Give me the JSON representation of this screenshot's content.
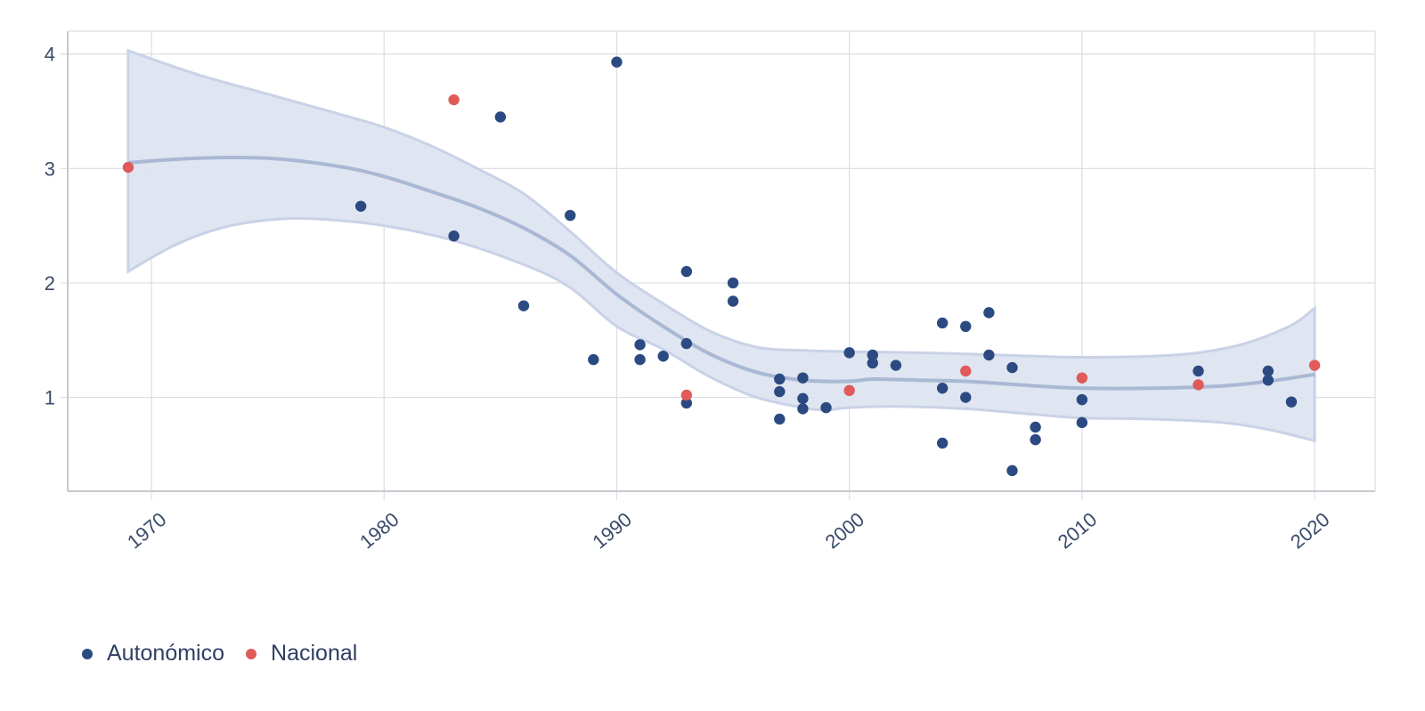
{
  "chart_data": {
    "type": "scatter",
    "title": "",
    "xlabel": "",
    "ylabel": "",
    "xlim": [
      1966.4,
      2022.6
    ],
    "ylim": [
      0.18,
      4.2
    ],
    "x_ticks": [
      1970,
      1980,
      1990,
      2000,
      2010,
      2020
    ],
    "x_tick_labels": [
      "1970",
      "1980",
      "1990",
      "2000",
      "2010",
      "2020"
    ],
    "y_ticks": [
      1,
      2,
      3,
      4
    ],
    "y_tick_labels": [
      "1",
      "2",
      "3",
      "4"
    ],
    "grid": true,
    "legend_position": "bottom-left",
    "series": [
      {
        "name": "Autonómico",
        "color": "#2c4a82",
        "points": [
          [
            1979,
            2.67
          ],
          [
            1983,
            2.41
          ],
          [
            1985,
            3.45
          ],
          [
            1986,
            1.8
          ],
          [
            1988,
            2.59
          ],
          [
            1989,
            1.33
          ],
          [
            1990,
            3.93
          ],
          [
            1991,
            1.46
          ],
          [
            1991,
            1.33
          ],
          [
            1992,
            1.36
          ],
          [
            1993,
            2.1
          ],
          [
            1993,
            1.47
          ],
          [
            1993,
            0.95
          ],
          [
            1995,
            2.0
          ],
          [
            1995,
            1.84
          ],
          [
            1997,
            1.16
          ],
          [
            1997,
            1.05
          ],
          [
            1997,
            0.81
          ],
          [
            1998,
            1.17
          ],
          [
            1998,
            0.99
          ],
          [
            1998,
            0.9
          ],
          [
            1999,
            0.91
          ],
          [
            2000,
            1.39
          ],
          [
            2001,
            1.37
          ],
          [
            2001,
            1.3
          ],
          [
            2002,
            1.28
          ],
          [
            2004,
            1.65
          ],
          [
            2004,
            1.08
          ],
          [
            2004,
            0.6
          ],
          [
            2005,
            1.62
          ],
          [
            2005,
            1.0
          ],
          [
            2006,
            1.74
          ],
          [
            2006,
            1.37
          ],
          [
            2007,
            1.26
          ],
          [
            2007,
            0.36
          ],
          [
            2008,
            0.74
          ],
          [
            2008,
            0.63
          ],
          [
            2010,
            0.98
          ],
          [
            2010,
            0.78
          ],
          [
            2015,
            1.23
          ],
          [
            2018,
            1.23
          ],
          [
            2018,
            1.15
          ],
          [
            2019,
            0.96
          ]
        ]
      },
      {
        "name": "Nacional",
        "color": "#e05a5a",
        "points": [
          [
            1969,
            3.01
          ],
          [
            1983,
            3.6
          ],
          [
            1993,
            1.02
          ],
          [
            2000,
            1.06
          ],
          [
            2005,
            1.23
          ],
          [
            2010,
            1.17
          ],
          [
            2015,
            1.11
          ],
          [
            2020,
            1.28
          ]
        ]
      }
    ],
    "trend": {
      "name": "smooth",
      "line_color": "#a9b8d3",
      "band_color": "#dbe2f0",
      "line": [
        [
          1969,
          3.05
        ],
        [
          1972,
          3.09
        ],
        [
          1975,
          3.09
        ],
        [
          1978,
          3.02
        ],
        [
          1980,
          2.93
        ],
        [
          1982,
          2.8
        ],
        [
          1984,
          2.66
        ],
        [
          1986,
          2.48
        ],
        [
          1988,
          2.24
        ],
        [
          1990,
          1.9
        ],
        [
          1992,
          1.62
        ],
        [
          1994,
          1.38
        ],
        [
          1996,
          1.22
        ],
        [
          1998,
          1.15
        ],
        [
          2000,
          1.14
        ],
        [
          2001,
          1.16
        ],
        [
          2003,
          1.15
        ],
        [
          2005,
          1.14
        ],
        [
          2008,
          1.1
        ],
        [
          2010,
          1.08
        ],
        [
          2013,
          1.08
        ],
        [
          2016,
          1.1
        ],
        [
          2018,
          1.14
        ],
        [
          2020,
          1.2
        ]
      ],
      "upper": [
        [
          1969,
          4.03
        ],
        [
          1972,
          3.82
        ],
        [
          1975,
          3.65
        ],
        [
          1978,
          3.48
        ],
        [
          1980,
          3.36
        ],
        [
          1982,
          3.2
        ],
        [
          1984,
          3.0
        ],
        [
          1986,
          2.78
        ],
        [
          1988,
          2.45
        ],
        [
          1990,
          2.09
        ],
        [
          1992,
          1.82
        ],
        [
          1994,
          1.58
        ],
        [
          1996,
          1.44
        ],
        [
          1998,
          1.41
        ],
        [
          2000,
          1.4
        ],
        [
          2003,
          1.39
        ],
        [
          2005,
          1.38
        ],
        [
          2008,
          1.36
        ],
        [
          2010,
          1.35
        ],
        [
          2013,
          1.36
        ],
        [
          2015,
          1.39
        ],
        [
          2017,
          1.47
        ],
        [
          2019,
          1.63
        ],
        [
          2020,
          1.78
        ]
      ],
      "lower": [
        [
          1969,
          2.1
        ],
        [
          1971,
          2.33
        ],
        [
          1973,
          2.48
        ],
        [
          1975,
          2.55
        ],
        [
          1977,
          2.56
        ],
        [
          1980,
          2.5
        ],
        [
          1983,
          2.37
        ],
        [
          1986,
          2.16
        ],
        [
          1988,
          1.96
        ],
        [
          1990,
          1.62
        ],
        [
          1992,
          1.42
        ],
        [
          1994,
          1.18
        ],
        [
          1996,
          1.0
        ],
        [
          1998,
          0.91
        ],
        [
          1999,
          0.89
        ],
        [
          2000,
          0.91
        ],
        [
          2002,
          0.92
        ],
        [
          2005,
          0.9
        ],
        [
          2008,
          0.85
        ],
        [
          2010,
          0.82
        ],
        [
          2013,
          0.81
        ],
        [
          2016,
          0.78
        ],
        [
          2018,
          0.72
        ],
        [
          2020,
          0.62
        ]
      ]
    }
  },
  "legend": {
    "items": [
      {
        "label": "Autonómico",
        "color": "#2c4a82"
      },
      {
        "label": "Nacional",
        "color": "#e05a5a"
      }
    ]
  }
}
